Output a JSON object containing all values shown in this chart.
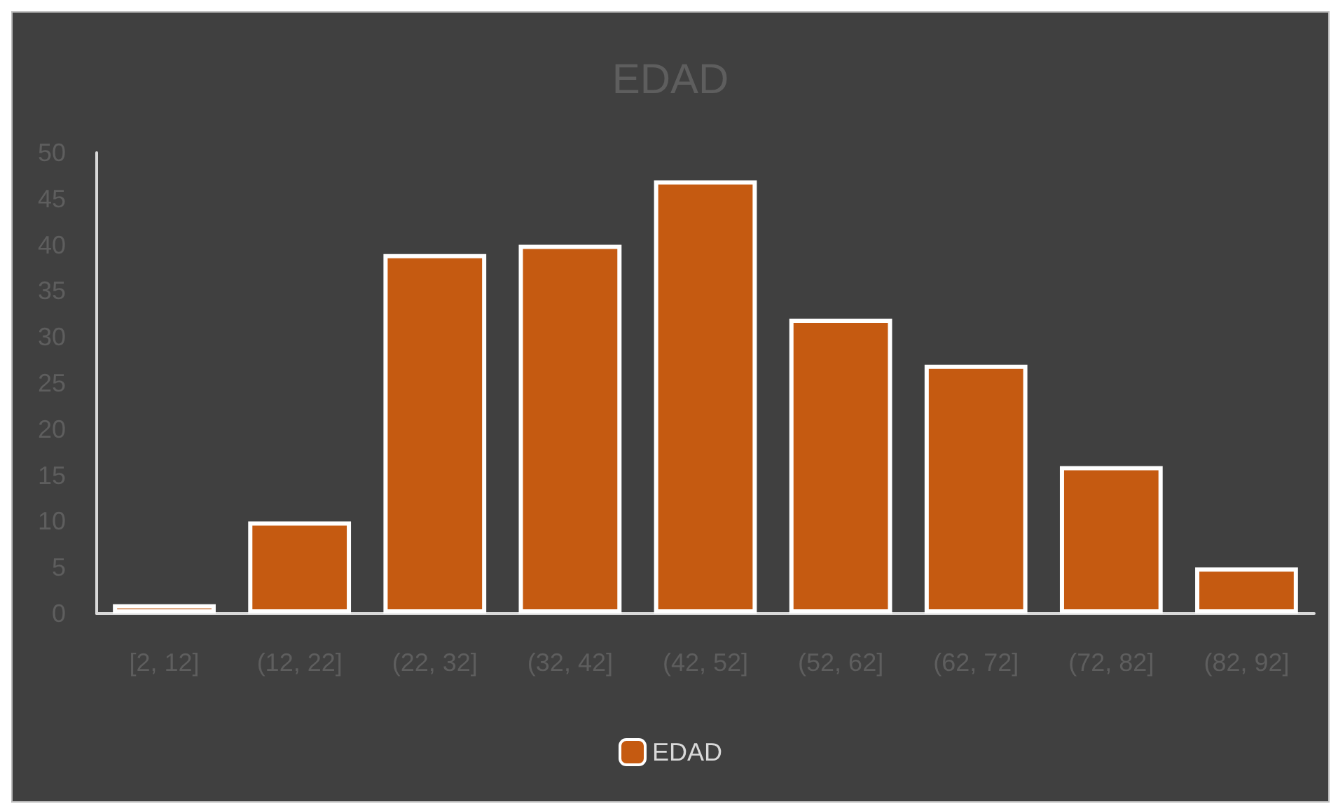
{
  "chart_data": {
    "type": "bar",
    "title": "EDAD",
    "categories": [
      "[2, 12]",
      "(12, 22]",
      "(22, 32]",
      "(32, 42]",
      "(42, 52]",
      "(52, 62]",
      "(62, 72]",
      "(72, 82]",
      "(82, 92]"
    ],
    "series": [
      {
        "name": "EDAD",
        "color": "#c55a11",
        "values": [
          1,
          10,
          39,
          40,
          47,
          32,
          27,
          16,
          5
        ]
      }
    ],
    "ylim": [
      0,
      50
    ],
    "yticks": [
      0,
      5,
      10,
      15,
      20,
      25,
      30,
      35,
      40,
      45,
      50
    ],
    "grid": false,
    "legend": "bottom"
  }
}
